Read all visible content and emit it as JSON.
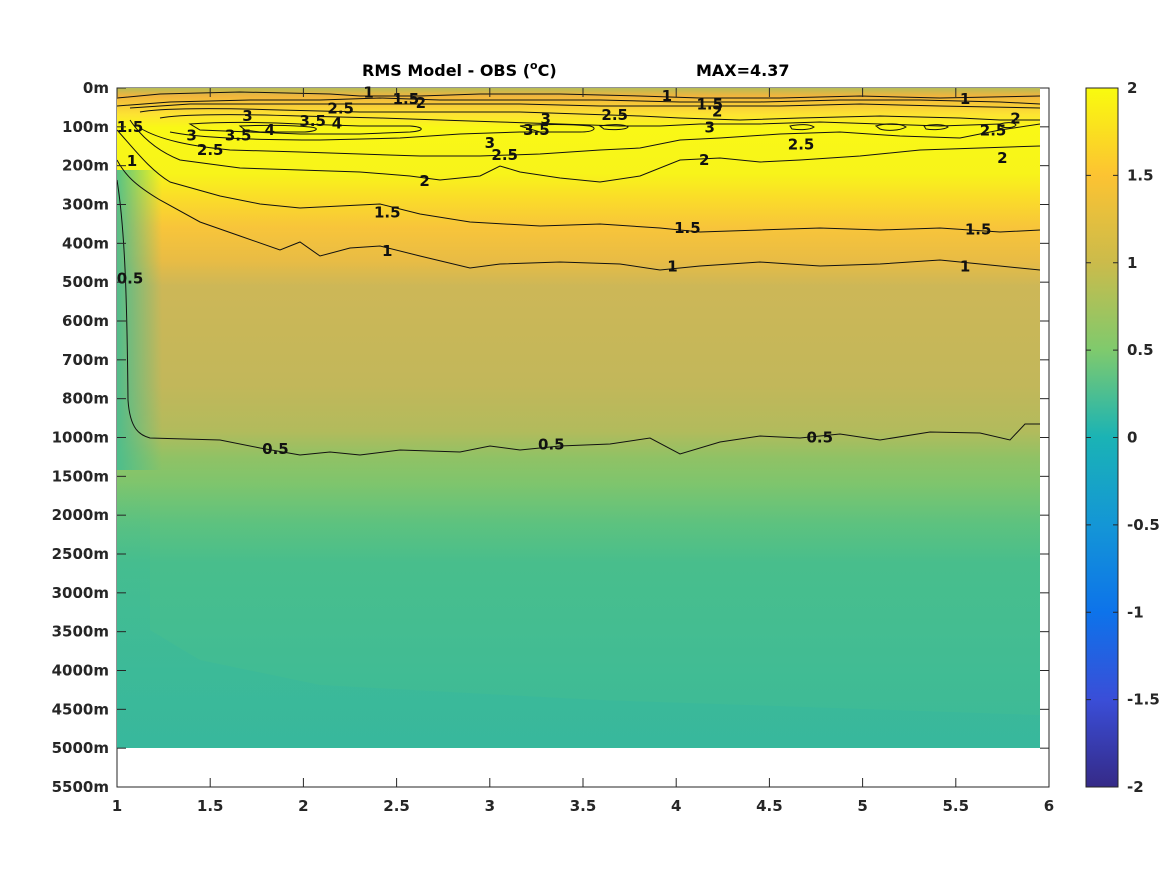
{
  "chart_data": {
    "type": "heatmap",
    "title": "RMS Model - OBS (",
    "title_unit_sup": "o",
    "title_unit": "C)",
    "max_label": "MAX=4.37",
    "xlim": [
      1,
      6
    ],
    "x_ticks": [
      "1",
      "1.5",
      "2",
      "2.5",
      "3",
      "3.5",
      "4",
      "4.5",
      "5",
      "5.5",
      "6"
    ],
    "y_ticks": [
      "0m",
      "100m",
      "200m",
      "300m",
      "400m",
      "500m",
      "600m",
      "700m",
      "800m",
      "1000m",
      "1500m",
      "2000m",
      "2500m",
      "3000m",
      "3500m",
      "4000m",
      "4500m",
      "5000m",
      "5500m"
    ],
    "colorbar": {
      "range": [
        -2,
        2
      ],
      "ticks": [
        "2",
        "1.5",
        "1",
        "0.5",
        "0",
        "-0.5",
        "-1",
        "-1.5",
        "-2"
      ],
      "colormap": "parula"
    },
    "data_x_range": [
      1,
      5.95
    ],
    "data_max_depth_label": "5000m",
    "contour_levels": [
      0.5,
      1,
      1.5,
      2,
      2.5,
      3,
      3.5,
      4
    ],
    "contour_labels": [
      {
        "text": "1",
        "x": 2.35,
        "y": 0.12
      },
      {
        "text": "1.5",
        "x": 2.55,
        "y": 0.28
      },
      {
        "text": "2",
        "x": 2.63,
        "y": 0.38
      },
      {
        "text": "3",
        "x": 1.7,
        "y": 0.72
      },
      {
        "text": "2.5",
        "x": 2.2,
        "y": 0.53
      },
      {
        "text": "3.5",
        "x": 2.05,
        "y": 0.85
      },
      {
        "text": "4",
        "x": 2.18,
        "y": 0.92
      },
      {
        "text": "4",
        "x": 1.82,
        "y": 1.08
      },
      {
        "text": "3",
        "x": 1.4,
        "y": 1.22
      },
      {
        "text": "3.5",
        "x": 1.65,
        "y": 1.22
      },
      {
        "text": "2.5",
        "x": 1.5,
        "y": 1.6
      },
      {
        "text": "1.5",
        "x": 1.07,
        "y": 1.0
      },
      {
        "text": "1",
        "x": 1.08,
        "y": 1.88
      },
      {
        "text": "3",
        "x": 3.3,
        "y": 0.8
      },
      {
        "text": "3.5",
        "x": 3.25,
        "y": 1.08
      },
      {
        "text": "2.5",
        "x": 3.67,
        "y": 0.7
      },
      {
        "text": "3",
        "x": 3.0,
        "y": 1.42
      },
      {
        "text": "2.5",
        "x": 3.08,
        "y": 1.72
      },
      {
        "text": "2",
        "x": 2.65,
        "y": 2.4
      },
      {
        "text": "1",
        "x": 3.95,
        "y": 0.2
      },
      {
        "text": "1.5",
        "x": 4.18,
        "y": 0.42
      },
      {
        "text": "2",
        "x": 4.22,
        "y": 0.6
      },
      {
        "text": "3",
        "x": 4.18,
        "y": 1.02
      },
      {
        "text": "2.5",
        "x": 4.67,
        "y": 1.45
      },
      {
        "text": "2",
        "x": 4.15,
        "y": 1.85
      },
      {
        "text": "1",
        "x": 5.55,
        "y": 0.28
      },
      {
        "text": "2.5",
        "x": 5.7,
        "y": 1.1
      },
      {
        "text": "2",
        "x": 5.82,
        "y": 0.78
      },
      {
        "text": "2",
        "x": 5.75,
        "y": 1.8
      },
      {
        "text": "1.5",
        "x": 2.45,
        "y": 3.2
      },
      {
        "text": "1.5",
        "x": 4.06,
        "y": 3.6
      },
      {
        "text": "1.5",
        "x": 5.62,
        "y": 3.65
      },
      {
        "text": "1",
        "x": 2.45,
        "y": 4.2
      },
      {
        "text": "1",
        "x": 3.98,
        "y": 4.6
      },
      {
        "text": "1",
        "x": 5.55,
        "y": 4.6
      },
      {
        "text": "0.5",
        "x": 1.07,
        "y": 4.9
      },
      {
        "text": "0.5",
        "x": 1.85,
        "y": 9.3
      },
      {
        "text": "0.5",
        "x": 3.33,
        "y": 9.18
      },
      {
        "text": "0.5",
        "x": 4.77,
        "y": 9.0
      }
    ]
  }
}
